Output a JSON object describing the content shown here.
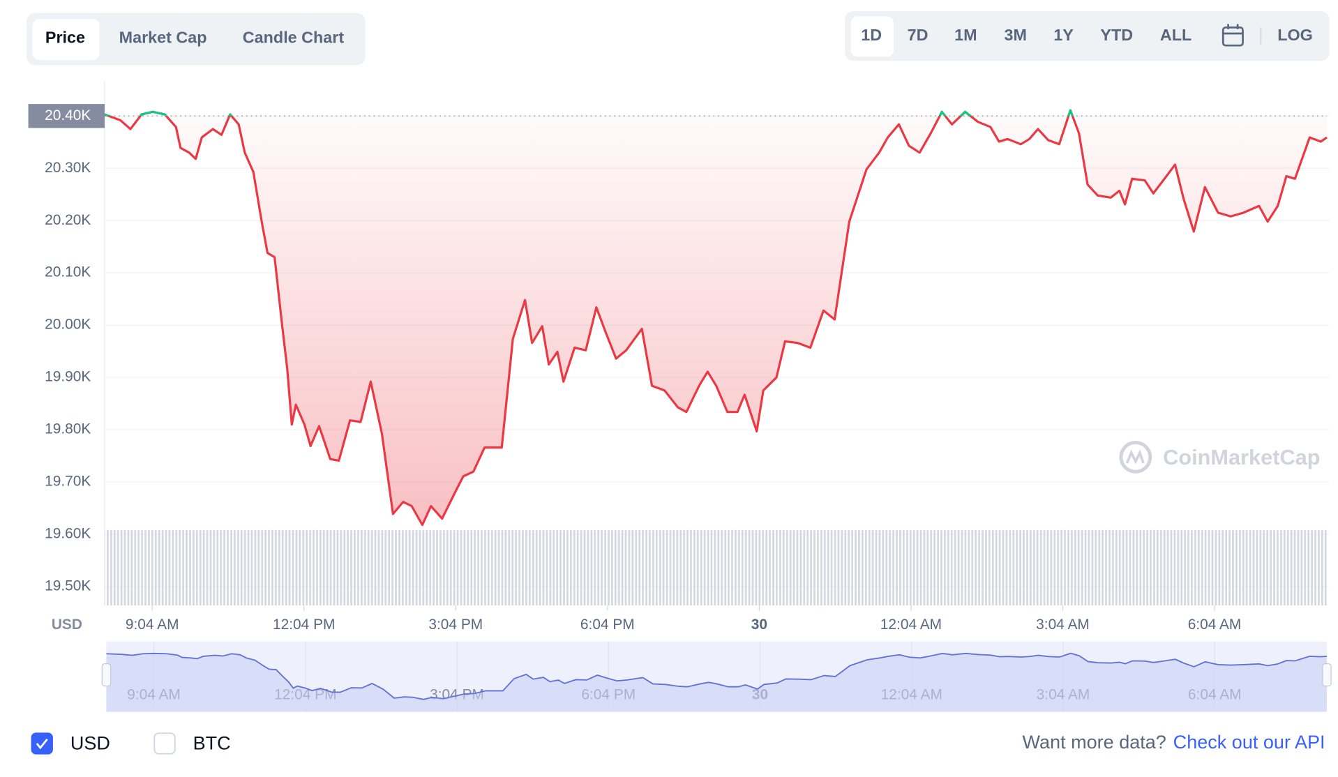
{
  "tabs": [
    "Price",
    "Market Cap",
    "Candle Chart"
  ],
  "ranges": [
    "1D",
    "7D",
    "1M",
    "3M",
    "1Y",
    "YTD",
    "ALL"
  ],
  "log_button": "LOG",
  "chart_data": {
    "type": "line",
    "y_unit": "USD",
    "watermark": "CoinMarketCap",
    "color": "#ea3943",
    "up_color": "#16c784",
    "reference": 20400,
    "grid": true,
    "xlim": [
      8.13,
      32.29
    ],
    "ylim": [
      19464,
      20466
    ],
    "xticks": [
      {
        "value": 9.07,
        "label": "9:04 AM"
      },
      {
        "value": 12.07,
        "label": "12:04 PM"
      },
      {
        "value": 15.07,
        "label": "3:04 PM"
      },
      {
        "value": 18.07,
        "label": "6:04 PM"
      },
      {
        "value": 21.07,
        "label": "30"
      },
      {
        "value": 24.07,
        "label": "12:04 AM"
      },
      {
        "value": 27.07,
        "label": "3:04 AM"
      },
      {
        "value": 30.07,
        "label": "6:04 AM"
      }
    ],
    "yticks": [
      {
        "value": 20400,
        "label": "20.40K"
      },
      {
        "value": 20300,
        "label": "20.30K"
      },
      {
        "value": 20200,
        "label": "20.20K"
      },
      {
        "value": 20100,
        "label": "20.10K"
      },
      {
        "value": 20000,
        "label": "20.00K"
      },
      {
        "value": 19900,
        "label": "19.90K"
      },
      {
        "value": 19800,
        "label": "19.80K"
      },
      {
        "value": 19700,
        "label": "19.70K"
      },
      {
        "value": 19600,
        "label": "19.60K"
      },
      {
        "value": 19500,
        "label": "19.50K"
      }
    ],
    "x": [
      8.13,
      8.44,
      8.64,
      8.86,
      9.08,
      9.32,
      9.54,
      9.63,
      9.8,
      9.93,
      10.05,
      10.27,
      10.44,
      10.61,
      10.78,
      10.9,
      11.07,
      11.24,
      11.35,
      11.49,
      11.63,
      11.74,
      11.83,
      11.91,
      12.08,
      12.2,
      12.37,
      12.59,
      12.76,
      12.98,
      13.19,
      13.39,
      13.61,
      13.83,
      14.03,
      14.2,
      14.41,
      14.58,
      14.8,
      15.05,
      15.22,
      15.42,
      15.64,
      15.98,
      16.2,
      16.44,
      16.58,
      16.78,
      16.91,
      17.08,
      17.2,
      17.42,
      17.64,
      17.85,
      18.02,
      18.24,
      18.44,
      18.75,
      18.95,
      19.2,
      19.46,
      19.63,
      19.88,
      20.05,
      20.22,
      20.44,
      20.64,
      20.78,
      21.02,
      21.15,
      21.41,
      21.58,
      21.83,
      22.08,
      22.34,
      22.56,
      22.85,
      23.19,
      23.44,
      23.61,
      23.83,
      24.03,
      24.24,
      24.46,
      24.68,
      24.88,
      25.14,
      25.39,
      25.64,
      25.81,
      25.98,
      26.24,
      26.41,
      26.58,
      26.78,
      27.0,
      27.22,
      27.39,
      27.56,
      27.76,
      28.02,
      28.19,
      28.3,
      28.44,
      28.69,
      28.86,
      29.08,
      29.29,
      29.46,
      29.66,
      29.88,
      30.14,
      30.39,
      30.64,
      30.95,
      31.12,
      31.32,
      31.49,
      31.66,
      31.95,
      32.17,
      32.29
    ],
    "values": [
      20403,
      20392,
      20375,
      20403,
      20408,
      20403,
      20379,
      20339,
      20330,
      20318,
      20359,
      20375,
      20364,
      20403,
      20384,
      20330,
      20293,
      20195,
      20138,
      20130,
      20007,
      19916,
      19810,
      19848,
      19810,
      19769,
      19807,
      19744,
      19741,
      19818,
      19815,
      19892,
      19793,
      19639,
      19662,
      19654,
      19618,
      19654,
      19630,
      19679,
      19711,
      19720,
      19766,
      19766,
      19974,
      20048,
      19966,
      19998,
      19925,
      19949,
      19892,
      19957,
      19952,
      20034,
      19990,
      19936,
      19952,
      19993,
      19884,
      19875,
      19843,
      19834,
      19884,
      19911,
      19884,
      19834,
      19834,
      19867,
      19797,
      19875,
      19900,
      19969,
      19966,
      19957,
      20028,
      20011,
      20198,
      20298,
      20330,
      20359,
      20384,
      20343,
      20330,
      20367,
      20408,
      20384,
      20408,
      20389,
      20379,
      20351,
      20356,
      20346,
      20356,
      20375,
      20354,
      20346,
      20411,
      20367,
      20269,
      20248,
      20244,
      20257,
      20231,
      20280,
      20277,
      20252,
      20280,
      20307,
      20241,
      20179,
      20264,
      20215,
      20208,
      20215,
      20228,
      20198,
      20228,
      20285,
      20280,
      20359,
      20351,
      20359
    ]
  },
  "currencies": [
    {
      "label": "USD",
      "checked": true
    },
    {
      "label": "BTC",
      "checked": false
    }
  ],
  "footer": {
    "prompt": "Want more data?",
    "link": "Check out our API"
  }
}
